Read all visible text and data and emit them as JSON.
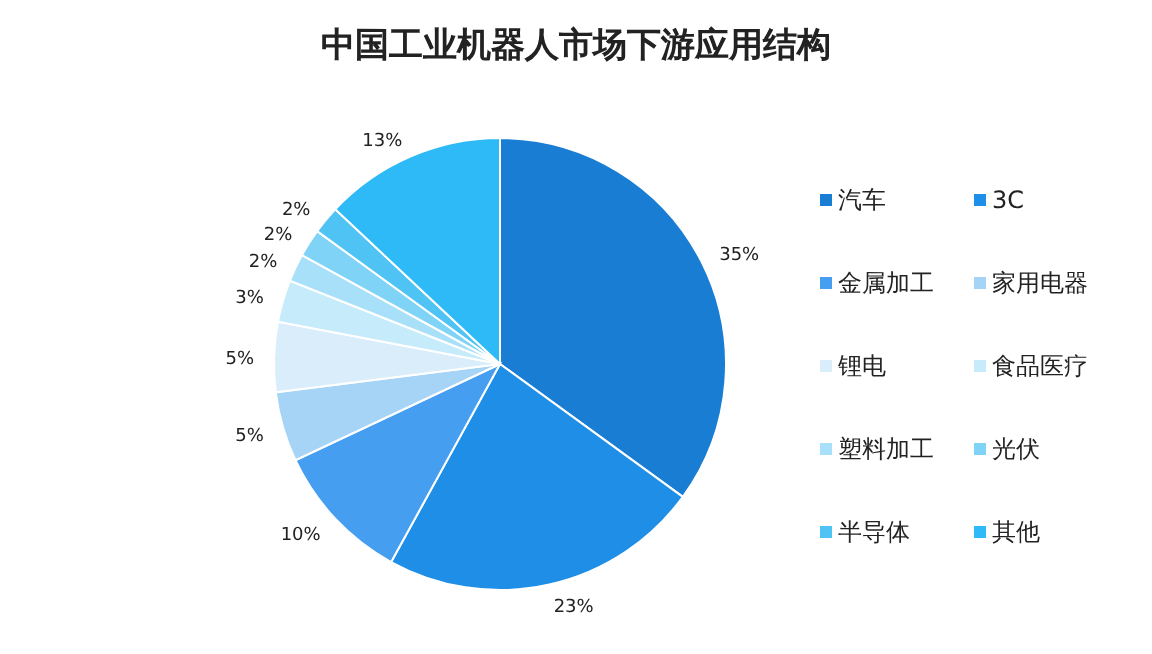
{
  "chart_data": {
    "type": "pie",
    "title": "中国工业机器人市场下游应用结构",
    "categories": [
      "汽车",
      "3C",
      "金属加工",
      "家用电器",
      "锂电",
      "食品医疗",
      "塑料加工",
      "光伏",
      "半导体",
      "其他"
    ],
    "values": [
      35,
      23,
      10,
      5,
      5,
      3,
      2,
      2,
      2,
      13
    ],
    "value_labels": [
      "35%",
      "23%",
      "10%",
      "5%",
      "5%",
      "3%",
      "2%",
      "2%",
      "2%",
      "13%"
    ],
    "colors": [
      "#1a7dd4",
      "#1e8ee6",
      "#469ef0",
      "#a6d4f7",
      "#d9edfb",
      "#c6ebfb",
      "#a9e0f9",
      "#7fd3f7",
      "#50c3f5",
      "#2dbaf6"
    ],
    "legend": "right"
  }
}
